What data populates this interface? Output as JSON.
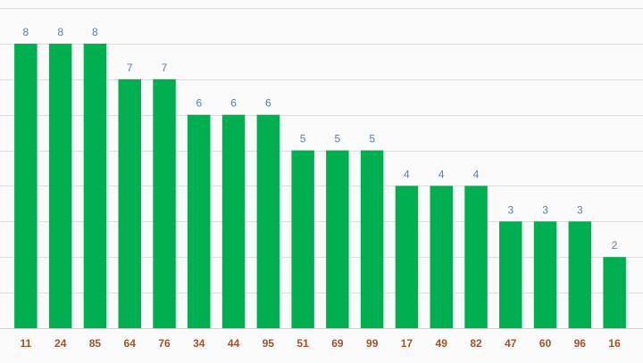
{
  "chart_data": {
    "type": "bar",
    "categories": [
      "11",
      "24",
      "85",
      "64",
      "76",
      "34",
      "44",
      "95",
      "51",
      "69",
      "99",
      "17",
      "49",
      "82",
      "47",
      "60",
      "96",
      "16"
    ],
    "values": [
      8,
      8,
      8,
      7,
      7,
      6,
      6,
      6,
      5,
      5,
      5,
      4,
      4,
      4,
      3,
      3,
      3,
      2
    ],
    "title": "",
    "xlabel": "",
    "ylabel": "",
    "ylim": [
      0,
      9
    ],
    "grid": true,
    "legend": "none",
    "colors": {
      "bar": "#00b050",
      "data_label": "#5b7fa3",
      "tick_label": "#a0522d",
      "grid": "#dcdcdc",
      "background": "#fafafa"
    }
  }
}
